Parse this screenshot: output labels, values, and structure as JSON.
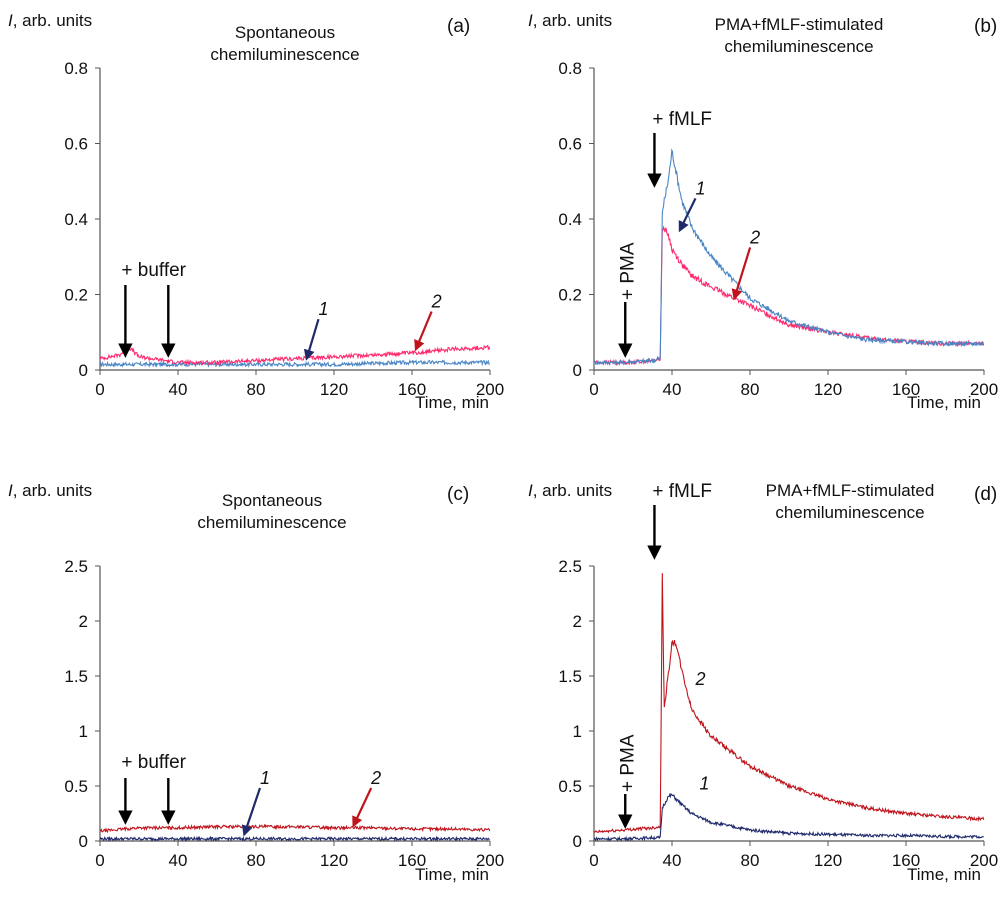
{
  "figure": {
    "xlabel": "Time, min",
    "ylabel_var": "I",
    "ylabel_rest": ", arb. units"
  },
  "colors": {
    "a_b_curve1": "#4a86c5",
    "a_b_curve2": "#ff2a6d",
    "c_d_curve1": "#1f2a6b",
    "c_d_curve2": "#c0141c",
    "arrow": "#000000",
    "arrow1_small": "#1f2a6b",
    "arrow2_small": "#c0141c"
  },
  "chart_data": [
    {
      "panel": "(a)",
      "type": "line",
      "title": [
        "Spontaneous",
        "chemiluminescence"
      ],
      "xlabel": "Time, min",
      "ylabel": "I, arb. units",
      "xlim": [
        0,
        200
      ],
      "ylim": [
        0,
        0.8
      ],
      "xticks": [
        "0",
        "40",
        "80",
        "120",
        "160",
        "200"
      ],
      "yticks": [
        "0",
        "0.2",
        "0.4",
        "0.6",
        "0.8"
      ],
      "grid": false,
      "annotations": [
        {
          "text": "+ buffer",
          "x": 15
        },
        {
          "arrows_at": [
            12,
            34
          ]
        }
      ],
      "series": [
        {
          "name": "1",
          "x": [
            0,
            40,
            80,
            120,
            160,
            200
          ],
          "values": [
            0.015,
            0.015,
            0.015,
            0.015,
            0.02,
            0.02
          ]
        },
        {
          "name": "2",
          "x": [
            0,
            10,
            15,
            20,
            40,
            60,
            80,
            100,
            120,
            140,
            160,
            180,
            200
          ],
          "values": [
            0.03,
            0.04,
            0.06,
            0.035,
            0.02,
            0.02,
            0.025,
            0.03,
            0.035,
            0.04,
            0.045,
            0.055,
            0.06
          ]
        }
      ]
    },
    {
      "panel": "(b)",
      "type": "line",
      "title": [
        "PMA+fMLF-stimulated",
        "chemiluminescence"
      ],
      "xlabel": "Time, min",
      "ylabel": "I, arb. units",
      "xlim": [
        0,
        200
      ],
      "ylim": [
        0,
        0.8
      ],
      "xticks": [
        "0",
        "40",
        "80",
        "120",
        "160",
        "200"
      ],
      "yticks": [
        "0",
        "0.2",
        "0.4",
        "0.6",
        "0.8"
      ],
      "grid": false,
      "annotations": [
        {
          "text": "+ fMLF",
          "x": 33
        },
        {
          "text": "+ PMA",
          "x": 15
        }
      ],
      "series": [
        {
          "name": "1",
          "x": [
            0,
            15,
            30,
            34,
            35,
            38,
            40,
            45,
            50,
            60,
            80,
            100,
            120,
            140,
            160,
            180,
            200
          ],
          "values": [
            0.02,
            0.02,
            0.025,
            0.03,
            0.42,
            0.5,
            0.58,
            0.45,
            0.38,
            0.3,
            0.19,
            0.13,
            0.1,
            0.08,
            0.075,
            0.07,
            0.07
          ]
        },
        {
          "name": "2",
          "x": [
            0,
            15,
            30,
            34,
            35,
            38,
            40,
            45,
            50,
            60,
            80,
            100,
            120,
            140,
            160,
            180,
            200
          ],
          "values": [
            0.02,
            0.02,
            0.025,
            0.03,
            0.38,
            0.36,
            0.32,
            0.28,
            0.25,
            0.22,
            0.17,
            0.12,
            0.1,
            0.085,
            0.075,
            0.07,
            0.07
          ]
        }
      ]
    },
    {
      "panel": "(c)",
      "type": "line",
      "title": [
        "Spontaneous",
        "chemiluminescence"
      ],
      "xlabel": "Time, min",
      "ylabel": "I, arb. units",
      "xlim": [
        0,
        200
      ],
      "ylim": [
        0,
        2.5
      ],
      "xticks": [
        "0",
        "40",
        "80",
        "120",
        "160",
        "200"
      ],
      "yticks": [
        "0",
        "0.5",
        "1",
        "1.5",
        "2",
        "2.5"
      ],
      "grid": false,
      "annotations": [
        {
          "text": "+ buffer",
          "x": 15
        },
        {
          "arrows_at": [
            12,
            34
          ]
        }
      ],
      "series": [
        {
          "name": "1",
          "x": [
            0,
            40,
            80,
            120,
            160,
            200
          ],
          "values": [
            0.02,
            0.02,
            0.02,
            0.02,
            0.02,
            0.02
          ]
        },
        {
          "name": "2",
          "x": [
            0,
            20,
            40,
            60,
            80,
            100,
            120,
            140,
            160,
            180,
            200
          ],
          "values": [
            0.09,
            0.12,
            0.12,
            0.13,
            0.13,
            0.13,
            0.12,
            0.12,
            0.11,
            0.11,
            0.1
          ]
        }
      ]
    },
    {
      "panel": "(d)",
      "type": "line",
      "title": [
        "PMA+fMLF-stimulated",
        "chemiluminescence"
      ],
      "xlabel": "Time, min",
      "ylabel": "I, arb. units",
      "xlim": [
        0,
        200
      ],
      "ylim": [
        0,
        2.5
      ],
      "xticks": [
        "0",
        "40",
        "80",
        "120",
        "160",
        "200"
      ],
      "yticks": [
        "0",
        "0.5",
        "1",
        "1.5",
        "2",
        "2.5"
      ],
      "grid": false,
      "annotations": [
        {
          "text": "+ fMLF",
          "x": 33
        },
        {
          "text": "+ PMA",
          "x": 15
        }
      ],
      "series": [
        {
          "name": "1",
          "x": [
            0,
            15,
            30,
            34,
            35,
            38,
            40,
            45,
            50,
            60,
            80,
            100,
            120,
            140,
            160,
            180,
            200
          ],
          "values": [
            0.02,
            0.02,
            0.03,
            0.03,
            0.3,
            0.4,
            0.42,
            0.33,
            0.25,
            0.17,
            0.1,
            0.07,
            0.06,
            0.05,
            0.05,
            0.04,
            0.04
          ]
        },
        {
          "name": "2",
          "x": [
            0,
            15,
            30,
            34,
            35,
            36,
            38,
            40,
            42,
            45,
            50,
            60,
            80,
            100,
            120,
            140,
            160,
            180,
            200
          ],
          "values": [
            0.08,
            0.1,
            0.12,
            0.13,
            2.45,
            1.2,
            1.5,
            1.8,
            1.8,
            1.55,
            1.2,
            0.95,
            0.68,
            0.5,
            0.38,
            0.3,
            0.25,
            0.22,
            0.2
          ]
        }
      ]
    }
  ]
}
